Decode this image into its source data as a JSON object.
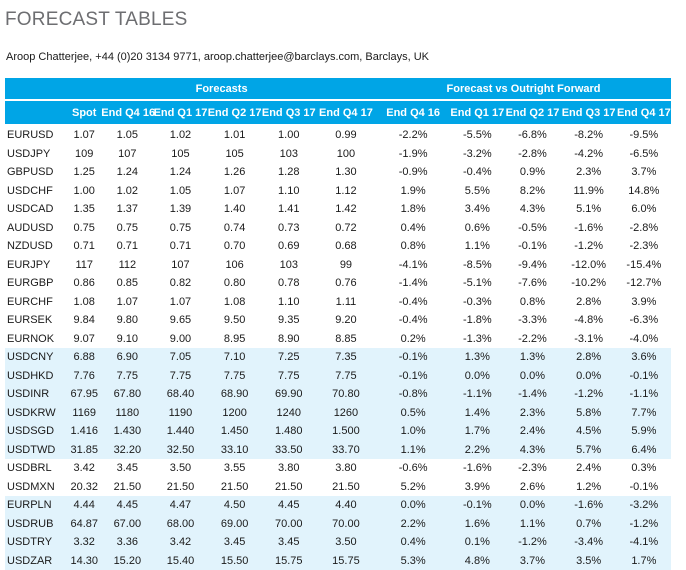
{
  "title": "FORECAST TABLES",
  "author_line": "Aroop Chatterjee, +44 (0)20 3134 9771, aroop.chatterjee@barclays.com, Barclays, UK",
  "colors": {
    "header_bg": "#00a5e6",
    "shade_bg": "#e1f3fc",
    "title_color": "#6d6e71"
  },
  "table": {
    "group_headers": {
      "forecasts": "Forecasts",
      "vs_forward": "Forecast vs Outright Forward"
    },
    "columns": [
      "",
      "Spot",
      "End Q4 16",
      "End Q1 17",
      "End Q2 17",
      "End Q3 17",
      "End Q4 17",
      "End Q4 16",
      "End Q1 17",
      "End Q2 17",
      "End Q3 17",
      "End Q4 17"
    ],
    "rows": [
      {
        "pair": "EURUSD",
        "shade": false,
        "values": [
          "1.07",
          "1.05",
          "1.02",
          "1.01",
          "1.00",
          "0.99",
          "-2.2%",
          "-5.5%",
          "-6.8%",
          "-8.2%",
          "-9.5%"
        ]
      },
      {
        "pair": "USDJPY",
        "shade": false,
        "values": [
          "109",
          "107",
          "105",
          "105",
          "103",
          "100",
          "-1.9%",
          "-3.2%",
          "-2.8%",
          "-4.2%",
          "-6.5%"
        ]
      },
      {
        "pair": "GBPUSD",
        "shade": false,
        "values": [
          "1.25",
          "1.24",
          "1.24",
          "1.26",
          "1.28",
          "1.30",
          "-0.9%",
          "-0.4%",
          "0.9%",
          "2.3%",
          "3.7%"
        ]
      },
      {
        "pair": "USDCHF",
        "shade": false,
        "values": [
          "1.00",
          "1.02",
          "1.05",
          "1.07",
          "1.10",
          "1.12",
          "1.9%",
          "5.5%",
          "8.2%",
          "11.9%",
          "14.8%"
        ]
      },
      {
        "pair": "USDCAD",
        "shade": false,
        "values": [
          "1.35",
          "1.37",
          "1.39",
          "1.40",
          "1.41",
          "1.42",
          "1.8%",
          "3.4%",
          "4.3%",
          "5.1%",
          "6.0%"
        ]
      },
      {
        "pair": "AUDUSD",
        "shade": false,
        "values": [
          "0.75",
          "0.75",
          "0.75",
          "0.74",
          "0.73",
          "0.72",
          "0.4%",
          "0.6%",
          "-0.5%",
          "-1.6%",
          "-2.8%"
        ]
      },
      {
        "pair": "NZDUSD",
        "shade": false,
        "values": [
          "0.71",
          "0.71",
          "0.71",
          "0.70",
          "0.69",
          "0.68",
          "0.8%",
          "1.1%",
          "-0.1%",
          "-1.2%",
          "-2.3%"
        ]
      },
      {
        "pair": "EURJPY",
        "shade": false,
        "values": [
          "117",
          "112",
          "107",
          "106",
          "103",
          "99",
          "-4.1%",
          "-8.5%",
          "-9.4%",
          "-12.0%",
          "-15.4%"
        ]
      },
      {
        "pair": "EURGBP",
        "shade": false,
        "values": [
          "0.86",
          "0.85",
          "0.82",
          "0.80",
          "0.78",
          "0.76",
          "-1.4%",
          "-5.1%",
          "-7.6%",
          "-10.2%",
          "-12.7%"
        ]
      },
      {
        "pair": "EURCHF",
        "shade": false,
        "values": [
          "1.08",
          "1.07",
          "1.07",
          "1.08",
          "1.10",
          "1.11",
          "-0.4%",
          "-0.3%",
          "0.8%",
          "2.8%",
          "3.9%"
        ]
      },
      {
        "pair": "EURSEK",
        "shade": false,
        "values": [
          "9.84",
          "9.80",
          "9.65",
          "9.50",
          "9.35",
          "9.20",
          "-0.4%",
          "-1.8%",
          "-3.3%",
          "-4.8%",
          "-6.3%"
        ]
      },
      {
        "pair": "EURNOK",
        "shade": false,
        "values": [
          "9.07",
          "9.10",
          "9.00",
          "8.95",
          "8.90",
          "8.85",
          "0.2%",
          "-1.3%",
          "-2.2%",
          "-3.1%",
          "-4.0%"
        ]
      },
      {
        "pair": "USDCNY",
        "shade": true,
        "values": [
          "6.88",
          "6.90",
          "7.05",
          "7.10",
          "7.25",
          "7.35",
          "-0.1%",
          "1.3%",
          "1.3%",
          "2.8%",
          "3.6%"
        ]
      },
      {
        "pair": "USDHKD",
        "shade": true,
        "values": [
          "7.76",
          "7.75",
          "7.75",
          "7.75",
          "7.75",
          "7.75",
          "-0.1%",
          "0.0%",
          "0.0%",
          "0.0%",
          "-0.1%"
        ]
      },
      {
        "pair": "USDINR",
        "shade": true,
        "values": [
          "67.95",
          "67.80",
          "68.40",
          "68.90",
          "69.90",
          "70.80",
          "-0.8%",
          "-1.1%",
          "-1.4%",
          "-1.2%",
          "-1.1%"
        ]
      },
      {
        "pair": "USDKRW",
        "shade": true,
        "values": [
          "1169",
          "1180",
          "1190",
          "1200",
          "1240",
          "1260",
          "0.5%",
          "1.4%",
          "2.3%",
          "5.8%",
          "7.7%"
        ]
      },
      {
        "pair": "USDSGD",
        "shade": true,
        "values": [
          "1.416",
          "1.430",
          "1.440",
          "1.450",
          "1.480",
          "1.500",
          "1.0%",
          "1.7%",
          "2.4%",
          "4.5%",
          "5.9%"
        ]
      },
      {
        "pair": "USDTWD",
        "shade": true,
        "values": [
          "31.85",
          "32.20",
          "32.50",
          "33.10",
          "33.50",
          "33.70",
          "1.1%",
          "2.2%",
          "4.3%",
          "5.7%",
          "6.4%"
        ]
      },
      {
        "pair": "USDBRL",
        "shade": false,
        "values": [
          "3.42",
          "3.45",
          "3.50",
          "3.55",
          "3.80",
          "3.80",
          "-0.6%",
          "-1.6%",
          "-2.3%",
          "2.4%",
          "0.3%"
        ]
      },
      {
        "pair": "USDMXN",
        "shade": false,
        "values": [
          "20.32",
          "21.50",
          "21.50",
          "21.50",
          "21.50",
          "21.50",
          "5.2%",
          "3.9%",
          "2.6%",
          "1.2%",
          "-0.1%"
        ]
      },
      {
        "pair": "EURPLN",
        "shade": true,
        "values": [
          "4.44",
          "4.45",
          "4.47",
          "4.50",
          "4.45",
          "4.40",
          "0.0%",
          "-0.1%",
          "0.0%",
          "-1.6%",
          "-3.2%"
        ]
      },
      {
        "pair": "USDRUB",
        "shade": true,
        "values": [
          "64.87",
          "67.00",
          "68.00",
          "69.00",
          "70.00",
          "70.00",
          "2.2%",
          "1.6%",
          "1.1%",
          "0.7%",
          "-1.2%"
        ]
      },
      {
        "pair": "USDTRY",
        "shade": true,
        "values": [
          "3.32",
          "3.36",
          "3.42",
          "3.45",
          "3.45",
          "3.50",
          "0.4%",
          "0.1%",
          "-1.2%",
          "-3.4%",
          "-4.1%"
        ]
      },
      {
        "pair": "USDZAR",
        "shade": true,
        "values": [
          "14.30",
          "15.20",
          "15.40",
          "15.50",
          "15.75",
          "15.75",
          "5.3%",
          "4.8%",
          "3.7%",
          "3.5%",
          "1.7%"
        ]
      }
    ]
  }
}
